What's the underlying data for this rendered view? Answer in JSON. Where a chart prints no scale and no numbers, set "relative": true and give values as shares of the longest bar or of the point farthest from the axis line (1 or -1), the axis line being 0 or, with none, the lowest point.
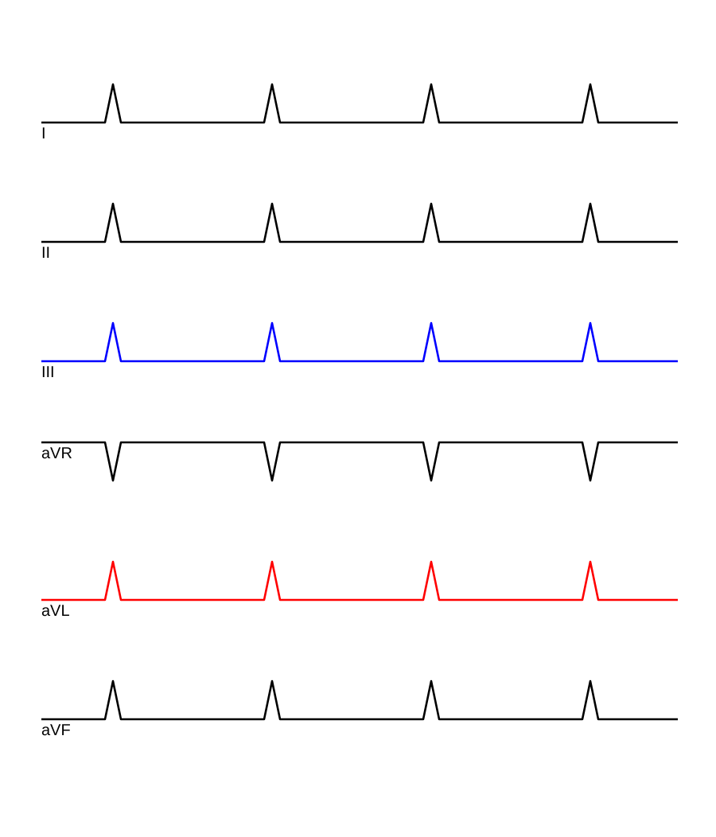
{
  "chart_data": [
    {
      "type": "line",
      "relative": true,
      "marker": "none",
      "line_style": "solid",
      "categories": [
        null,
        null,
        null,
        null,
        null,
        null,
        null,
        null,
        null,
        null,
        null,
        null,
        null,
        null,
        null,
        null,
        null,
        null,
        null,
        null,
        null,
        null,
        null,
        null,
        null,
        null,
        null,
        null,
        null,
        null,
        null,
        null,
        null,
        null,
        null,
        null,
        null,
        null,
        null,
        null,
        null,
        null,
        null,
        null,
        null,
        null,
        null,
        null,
        null,
        null,
        null,
        null,
        null,
        null,
        null,
        null,
        null,
        null,
        null,
        null,
        null,
        null,
        null,
        null,
        null,
        null,
        null,
        null,
        null,
        null,
        null,
        null,
        null,
        null,
        null,
        null,
        null,
        null,
        null,
        null,
        null
      ],
      "series": [
        {
          "name": "I",
          "color": "#000000",
          "values": [
            0,
            0,
            0,
            0,
            0,
            0,
            0,
            0,
            0,
            1,
            0,
            0,
            0,
            0,
            0,
            0,
            0,
            0,
            0,
            0,
            0,
            0,
            0,
            0,
            0,
            0,
            0,
            0,
            0,
            1,
            0,
            0,
            0,
            0,
            0,
            0,
            0,
            0,
            0,
            0,
            0,
            0,
            0,
            0,
            0,
            0,
            0,
            0,
            0,
            1,
            0,
            0,
            0,
            0,
            0,
            0,
            0,
            0,
            0,
            0,
            0,
            0,
            0,
            0,
            0,
            0,
            0,
            0,
            0,
            1,
            0,
            0,
            0,
            0,
            0,
            0,
            0,
            0,
            0,
            0,
            0
          ]
        }
      ]
    },
    {
      "type": "line",
      "relative": true,
      "marker": "none",
      "line_style": "solid",
      "categories": [
        null,
        null,
        null,
        null,
        null,
        null,
        null,
        null,
        null,
        null,
        null,
        null,
        null,
        null,
        null,
        null,
        null,
        null,
        null,
        null,
        null,
        null,
        null,
        null,
        null,
        null,
        null,
        null,
        null,
        null,
        null,
        null,
        null,
        null,
        null,
        null,
        null,
        null,
        null,
        null,
        null,
        null,
        null,
        null,
        null,
        null,
        null,
        null,
        null,
        null,
        null,
        null,
        null,
        null,
        null,
        null,
        null,
        null,
        null,
        null,
        null,
        null,
        null,
        null,
        null,
        null,
        null,
        null,
        null,
        null,
        null,
        null,
        null,
        null,
        null,
        null,
        null,
        null,
        null,
        null,
        null
      ],
      "series": [
        {
          "name": "II",
          "color": "#000000",
          "values": [
            0,
            0,
            0,
            0,
            0,
            0,
            0,
            0,
            0,
            1,
            0,
            0,
            0,
            0,
            0,
            0,
            0,
            0,
            0,
            0,
            0,
            0,
            0,
            0,
            0,
            0,
            0,
            0,
            0,
            1,
            0,
            0,
            0,
            0,
            0,
            0,
            0,
            0,
            0,
            0,
            0,
            0,
            0,
            0,
            0,
            0,
            0,
            0,
            0,
            1,
            0,
            0,
            0,
            0,
            0,
            0,
            0,
            0,
            0,
            0,
            0,
            0,
            0,
            0,
            0,
            0,
            0,
            0,
            0,
            1,
            0,
            0,
            0,
            0,
            0,
            0,
            0,
            0,
            0,
            0,
            0
          ]
        }
      ]
    },
    {
      "type": "line",
      "relative": true,
      "marker": "none",
      "line_style": "solid",
      "categories": [
        null,
        null,
        null,
        null,
        null,
        null,
        null,
        null,
        null,
        null,
        null,
        null,
        null,
        null,
        null,
        null,
        null,
        null,
        null,
        null,
        null,
        null,
        null,
        null,
        null,
        null,
        null,
        null,
        null,
        null,
        null,
        null,
        null,
        null,
        null,
        null,
        null,
        null,
        null,
        null,
        null,
        null,
        null,
        null,
        null,
        null,
        null,
        null,
        null,
        null,
        null,
        null,
        null,
        null,
        null,
        null,
        null,
        null,
        null,
        null,
        null,
        null,
        null,
        null,
        null,
        null,
        null,
        null,
        null,
        null,
        null,
        null,
        null,
        null,
        null,
        null,
        null,
        null,
        null,
        null,
        null
      ],
      "series": [
        {
          "name": "III",
          "color": "#0000ff",
          "values": [
            0,
            0,
            0,
            0,
            0,
            0,
            0,
            0,
            0,
            1,
            0,
            0,
            0,
            0,
            0,
            0,
            0,
            0,
            0,
            0,
            0,
            0,
            0,
            0,
            0,
            0,
            0,
            0,
            0,
            1,
            0,
            0,
            0,
            0,
            0,
            0,
            0,
            0,
            0,
            0,
            0,
            0,
            0,
            0,
            0,
            0,
            0,
            0,
            0,
            1,
            0,
            0,
            0,
            0,
            0,
            0,
            0,
            0,
            0,
            0,
            0,
            0,
            0,
            0,
            0,
            0,
            0,
            0,
            0,
            1,
            0,
            0,
            0,
            0,
            0,
            0,
            0,
            0,
            0,
            0,
            0
          ]
        }
      ]
    },
    {
      "type": "line",
      "relative": true,
      "marker": "none",
      "line_style": "solid",
      "categories": [
        null,
        null,
        null,
        null,
        null,
        null,
        null,
        null,
        null,
        null,
        null,
        null,
        null,
        null,
        null,
        null,
        null,
        null,
        null,
        null,
        null,
        null,
        null,
        null,
        null,
        null,
        null,
        null,
        null,
        null,
        null,
        null,
        null,
        null,
        null,
        null,
        null,
        null,
        null,
        null,
        null,
        null,
        null,
        null,
        null,
        null,
        null,
        null,
        null,
        null,
        null,
        null,
        null,
        null,
        null,
        null,
        null,
        null,
        null,
        null,
        null,
        null,
        null,
        null,
        null,
        null,
        null,
        null,
        null,
        null,
        null,
        null,
        null,
        null,
        null,
        null,
        null,
        null,
        null,
        null,
        null
      ],
      "series": [
        {
          "name": "aVR",
          "color": "#000000",
          "values": [
            1,
            1,
            1,
            1,
            1,
            1,
            1,
            1,
            1,
            0,
            1,
            1,
            1,
            1,
            1,
            1,
            1,
            1,
            1,
            1,
            1,
            1,
            1,
            1,
            1,
            1,
            1,
            1,
            1,
            0,
            1,
            1,
            1,
            1,
            1,
            1,
            1,
            1,
            1,
            1,
            1,
            1,
            1,
            1,
            1,
            1,
            1,
            1,
            1,
            0,
            1,
            1,
            1,
            1,
            1,
            1,
            1,
            1,
            1,
            1,
            1,
            1,
            1,
            1,
            1,
            1,
            1,
            1,
            1,
            0,
            1,
            1,
            1,
            1,
            1,
            1,
            1,
            1,
            1,
            1,
            1
          ]
        }
      ]
    },
    {
      "type": "line",
      "relative": true,
      "marker": "none",
      "line_style": "solid",
      "categories": [
        null,
        null,
        null,
        null,
        null,
        null,
        null,
        null,
        null,
        null,
        null,
        null,
        null,
        null,
        null,
        null,
        null,
        null,
        null,
        null,
        null,
        null,
        null,
        null,
        null,
        null,
        null,
        null,
        null,
        null,
        null,
        null,
        null,
        null,
        null,
        null,
        null,
        null,
        null,
        null,
        null,
        null,
        null,
        null,
        null,
        null,
        null,
        null,
        null,
        null,
        null,
        null,
        null,
        null,
        null,
        null,
        null,
        null,
        null,
        null,
        null,
        null,
        null,
        null,
        null,
        null,
        null,
        null,
        null,
        null,
        null,
        null,
        null,
        null,
        null,
        null,
        null,
        null,
        null,
        null,
        null
      ],
      "series": [
        {
          "name": "aVL",
          "color": "#ff0000",
          "values": [
            0,
            0,
            0,
            0,
            0,
            0,
            0,
            0,
            0,
            1,
            0,
            0,
            0,
            0,
            0,
            0,
            0,
            0,
            0,
            0,
            0,
            0,
            0,
            0,
            0,
            0,
            0,
            0,
            0,
            1,
            0,
            0,
            0,
            0,
            0,
            0,
            0,
            0,
            0,
            0,
            0,
            0,
            0,
            0,
            0,
            0,
            0,
            0,
            0,
            1,
            0,
            0,
            0,
            0,
            0,
            0,
            0,
            0,
            0,
            0,
            0,
            0,
            0,
            0,
            0,
            0,
            0,
            0,
            0,
            1,
            0,
            0,
            0,
            0,
            0,
            0,
            0,
            0,
            0,
            0,
            0
          ]
        }
      ]
    },
    {
      "type": "line",
      "relative": true,
      "marker": "none",
      "line_style": "solid",
      "categories": [
        null,
        null,
        null,
        null,
        null,
        null,
        null,
        null,
        null,
        null,
        null,
        null,
        null,
        null,
        null,
        null,
        null,
        null,
        null,
        null,
        null,
        null,
        null,
        null,
        null,
        null,
        null,
        null,
        null,
        null,
        null,
        null,
        null,
        null,
        null,
        null,
        null,
        null,
        null,
        null,
        null,
        null,
        null,
        null,
        null,
        null,
        null,
        null,
        null,
        null,
        null,
        null,
        null,
        null,
        null,
        null,
        null,
        null,
        null,
        null,
        null,
        null,
        null,
        null,
        null,
        null,
        null,
        null,
        null,
        null,
        null,
        null,
        null,
        null,
        null,
        null,
        null,
        null,
        null,
        null,
        null
      ],
      "series": [
        {
          "name": "aVF",
          "color": "#000000",
          "values": [
            0,
            0,
            0,
            0,
            0,
            0,
            0,
            0,
            0,
            1,
            0,
            0,
            0,
            0,
            0,
            0,
            0,
            0,
            0,
            0,
            0,
            0,
            0,
            0,
            0,
            0,
            0,
            0,
            0,
            1,
            0,
            0,
            0,
            0,
            0,
            0,
            0,
            0,
            0,
            0,
            0,
            0,
            0,
            0,
            0,
            0,
            0,
            0,
            0,
            1,
            0,
            0,
            0,
            0,
            0,
            0,
            0,
            0,
            0,
            0,
            0,
            0,
            0,
            0,
            0,
            0,
            0,
            0,
            0,
            1,
            0,
            0,
            0,
            0,
            0,
            0,
            0,
            0,
            0,
            0,
            0
          ]
        }
      ]
    }
  ]
}
